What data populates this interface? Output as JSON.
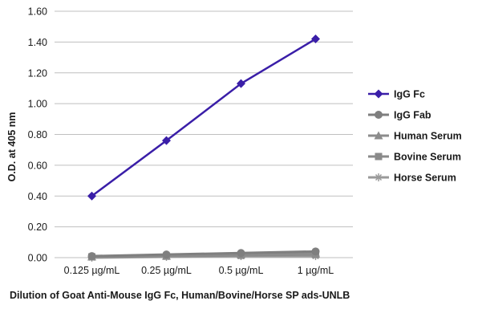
{
  "chart_data": {
    "type": "line",
    "title": "",
    "xlabel": "Dilution of Goat Anti-Mouse IgG Fc, Human/Bovine/Horse SP ads-UNLB",
    "ylabel": "O.D. at 405 nm",
    "categories": [
      "0.125 µg/mL",
      "0.25 µg/mL",
      "0.5 µg/mL",
      "1 µg/mL"
    ],
    "ylim": [
      0,
      1.6
    ],
    "yticks": [
      "0.00",
      "0.20",
      "0.40",
      "0.60",
      "0.80",
      "1.00",
      "1.20",
      "1.40",
      "1.60"
    ],
    "grid": true,
    "legend_position": "right",
    "series": [
      {
        "name": "IgG Fc",
        "values": [
          0.4,
          0.76,
          1.13,
          1.42
        ],
        "color": "#3a1ea8",
        "marker": "diamond"
      },
      {
        "name": "IgG Fab",
        "values": [
          0.01,
          0.02,
          0.03,
          0.04
        ],
        "color": "#7f7f7f",
        "marker": "circle"
      },
      {
        "name": "Human Serum",
        "values": [
          0.005,
          0.01,
          0.02,
          0.025
        ],
        "color": "#8c8c8c",
        "marker": "triangle"
      },
      {
        "name": "Bovine Serum",
        "values": [
          0.005,
          0.01,
          0.015,
          0.02
        ],
        "color": "#8a8a8a",
        "marker": "square"
      },
      {
        "name": "Horse Serum",
        "values": [
          0.0,
          0.005,
          0.01,
          0.01
        ],
        "color": "#9a9a9a",
        "marker": "asterisk"
      }
    ]
  }
}
